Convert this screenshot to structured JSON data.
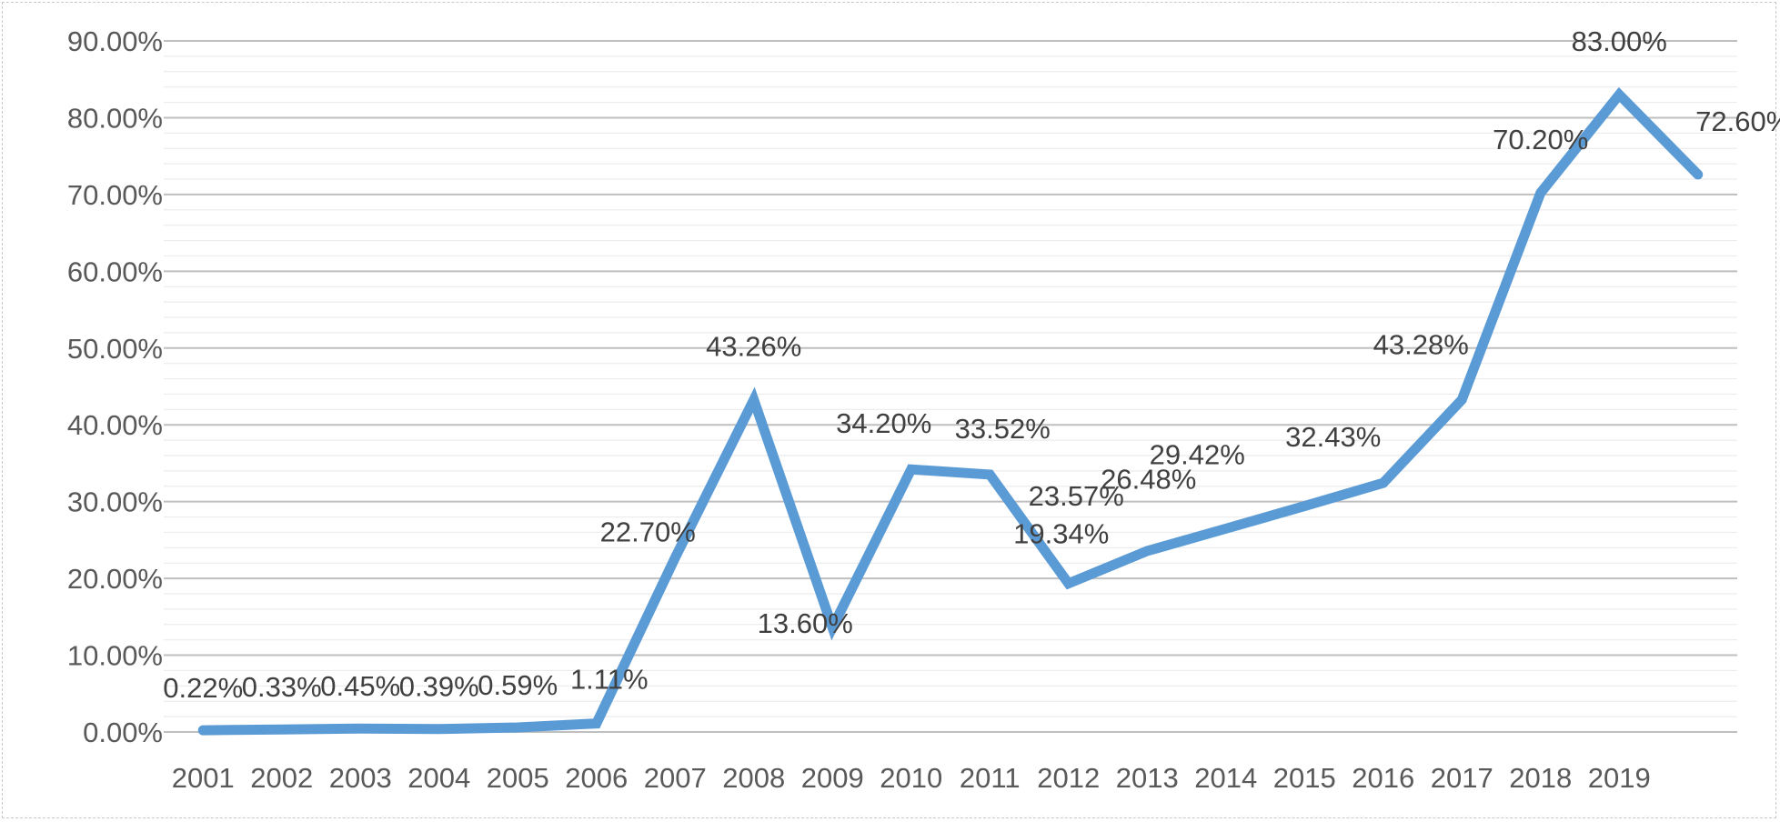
{
  "chart_data": {
    "type": "line",
    "title": "",
    "xlabel": "",
    "ylabel": "",
    "categories": [
      "2001",
      "2002",
      "2003",
      "2004",
      "2005",
      "2006",
      "2007",
      "2008",
      "2009",
      "2010",
      "2011",
      "2012",
      "2013",
      "2014",
      "2015",
      "2016",
      "2017",
      "2018",
      "2019",
      ""
    ],
    "series": [
      {
        "values": [
          0.22,
          0.33,
          0.45,
          0.39,
          0.59,
          1.11,
          22.7,
          43.26,
          13.6,
          34.2,
          33.52,
          19.34,
          23.57,
          26.48,
          29.42,
          32.43,
          43.28,
          70.2,
          83.0,
          72.6
        ],
        "labels": [
          "0.22%",
          "0.33%",
          "0.45%",
          "0.39%",
          "0.59%",
          "1.11%",
          "22.70%",
          "43.26%",
          "13.60%",
          "34.20%",
          "33.52%",
          "19.34%",
          "23.57%",
          "26.48%",
          "29.42%",
          "32.43%",
          "43.28%",
          "70.20%",
          "83.00%",
          "72.60%"
        ],
        "color": "#5B9BD5"
      }
    ],
    "ylim": [
      0,
      90
    ],
    "yticks": [
      0,
      10,
      20,
      30,
      40,
      50,
      60,
      70,
      80,
      90
    ],
    "ytick_labels": [
      "0.00%",
      "10.00%",
      "20.00%",
      "30.00%",
      "40.00%",
      "50.00%",
      "60.00%",
      "70.00%",
      "80.00%",
      "90.00%"
    ],
    "grid": true,
    "minor_grid": true,
    "legend": "none",
    "colors": {
      "major_grid": "#bfbfbf",
      "minor_grid": "#ececec",
      "tick_text": "#595959",
      "label_text": "#404040"
    }
  }
}
